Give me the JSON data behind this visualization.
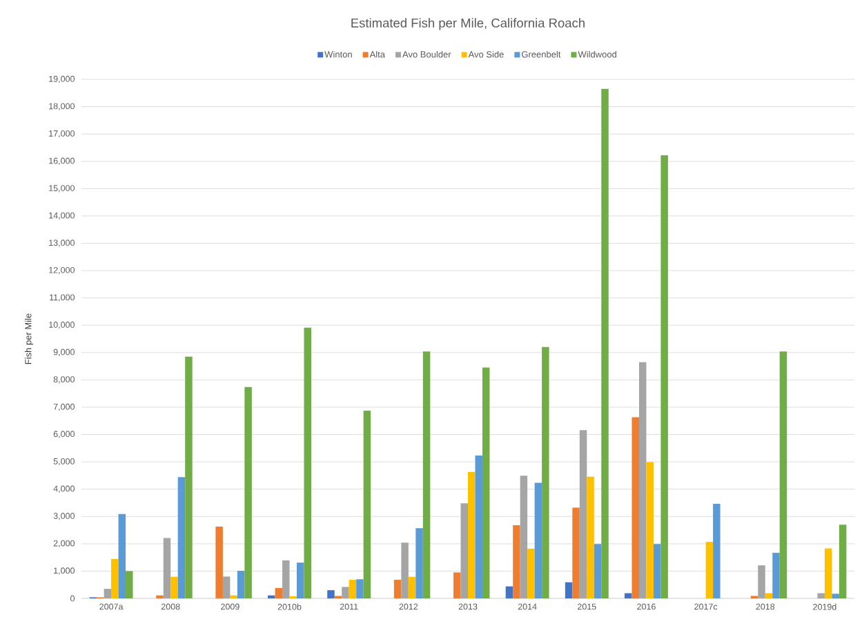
{
  "chart_data": {
    "type": "bar",
    "title": "Estimated Fish per Mile, California Roach",
    "ylabel": "Fish per Mile",
    "categories": [
      "2007a",
      "2008",
      "2009",
      "2010b",
      "2011",
      "2012",
      "2013",
      "2014",
      "2015",
      "2016",
      "2017c",
      "2018",
      "2019d"
    ],
    "series": [
      {
        "name": "Winton",
        "color": "#4472c4",
        "values": [
          40,
          null,
          null,
          110,
          300,
          null,
          null,
          440,
          590,
          190,
          null,
          null,
          null
        ]
      },
      {
        "name": "Alta",
        "color": "#ed7d31",
        "values": [
          40,
          110,
          2630,
          380,
          90,
          680,
          950,
          2680,
          3320,
          6630,
          null,
          90,
          null
        ]
      },
      {
        "name": "Avo Boulder",
        "color": "#a5a5a5",
        "values": [
          350,
          2210,
          800,
          1390,
          420,
          2040,
          3480,
          4490,
          6160,
          8650,
          null,
          1210,
          190
        ]
      },
      {
        "name": "Avo Side",
        "color": "#ffc000",
        "values": [
          1440,
          790,
          110,
          80,
          680,
          790,
          4630,
          1820,
          4450,
          4990,
          2070,
          190,
          1830
        ]
      },
      {
        "name": "Greenbelt",
        "color": "#5b9bd5",
        "values": [
          3090,
          4440,
          1010,
          1310,
          700,
          2570,
          5230,
          4230,
          1990,
          1990,
          3460,
          1670,
          170
        ]
      },
      {
        "name": "Wildwood",
        "color": "#70ad47",
        "values": [
          1000,
          8850,
          7740,
          9910,
          6870,
          9040,
          8450,
          9200,
          18650,
          16220,
          null,
          9040,
          2700
        ]
      }
    ],
    "ylim": [
      0,
      19000
    ],
    "yticks": [
      0,
      {
        "value": 1000,
        "label": "1,000"
      },
      {
        "value": 2000,
        "label": "2,000"
      },
      {
        "value": 3000,
        "label": "3,000"
      },
      {
        "value": 4000,
        "label": "4,000"
      },
      {
        "value": 5000,
        "label": "5,000"
      },
      {
        "value": 6000,
        "label": "6,000"
      },
      {
        "value": 7000,
        "label": "7,000"
      },
      {
        "value": 8000,
        "label": "8,000"
      },
      {
        "value": 9000,
        "label": "9,000"
      },
      {
        "value": 10000,
        "label": "10,000"
      },
      {
        "value": 11000,
        "label": "11,000"
      },
      {
        "value": 12000,
        "label": "12,000"
      },
      {
        "value": 13000,
        "label": "13,000"
      },
      {
        "value": 14000,
        "label": "14,000"
      },
      {
        "value": 15000,
        "label": "15,000"
      },
      {
        "value": 16000,
        "label": "16,000"
      },
      {
        "value": 17000,
        "label": "17,000"
      },
      {
        "value": 18000,
        "label": "18,000"
      },
      {
        "value": 19000,
        "label": "19,000"
      }
    ],
    "grid": "y",
    "legend": "top"
  }
}
